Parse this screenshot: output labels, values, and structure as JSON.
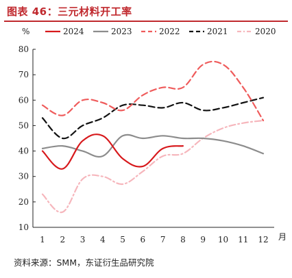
{
  "figure": {
    "title": "图表 46：三元材料开工率",
    "source": "资料来源：SMM，东证衍生品研究院"
  },
  "chart_data": {
    "type": "line",
    "ylabel": "%",
    "xlabel": "月",
    "ylim": [
      10,
      80
    ],
    "yticks": [
      10,
      20,
      30,
      40,
      50,
      60,
      70,
      80
    ],
    "categories": [
      "1",
      "2",
      "3",
      "4",
      "5",
      "6",
      "7",
      "8",
      "9",
      "10",
      "11",
      "12"
    ],
    "grid": false,
    "legend": "top",
    "series": [
      {
        "name": "2024",
        "color": "#d7191c",
        "dash": "solid",
        "values": [
          40,
          33,
          44,
          46,
          37,
          34,
          41,
          42,
          null,
          null,
          null,
          null
        ]
      },
      {
        "name": "2023",
        "color": "#8c8c8c",
        "dash": "solid",
        "values": [
          41,
          42,
          40,
          38,
          46,
          45,
          46,
          45,
          45,
          44,
          42,
          39
        ]
      },
      {
        "name": "2022",
        "color": "#ef5b5b",
        "dash": "dashed",
        "values": [
          58,
          54,
          60,
          59,
          56,
          62,
          65,
          65,
          74,
          74,
          65,
          52
        ]
      },
      {
        "name": "2021",
        "color": "#111111",
        "dash": "dashed",
        "values": [
          53,
          45,
          50,
          53,
          58,
          58,
          57,
          59,
          56,
          57,
          59,
          61
        ]
      },
      {
        "name": "2020",
        "color": "#f6b6bc",
        "dash": "dashdot",
        "values": [
          23,
          16,
          29,
          30,
          27,
          32,
          38,
          39,
          45,
          49,
          51,
          52
        ]
      }
    ]
  }
}
